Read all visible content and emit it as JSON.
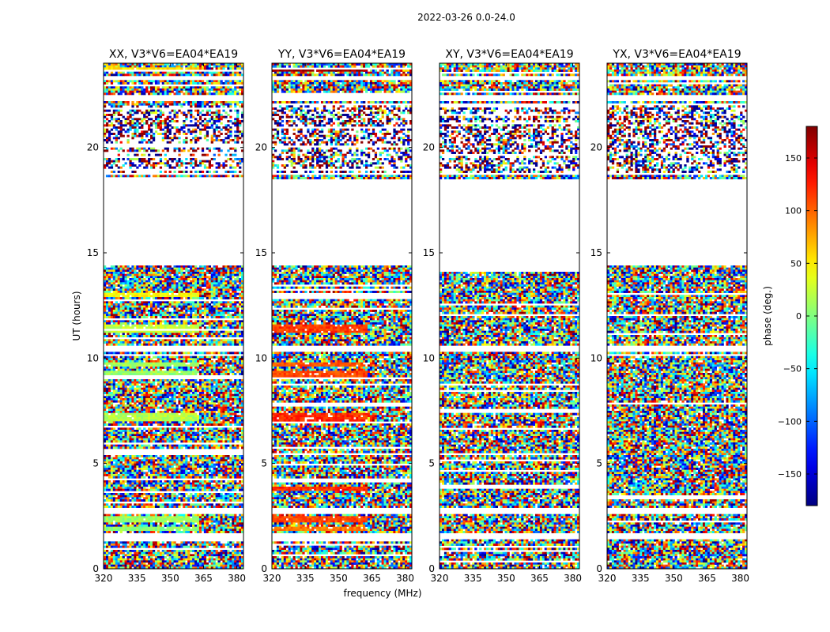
{
  "suptitle": "2022-03-26 0.0-24.0",
  "chart_data": {
    "type": "heatmap",
    "title": "2022-03-26 0.0-24.0",
    "xlabel": "frequency (MHz)",
    "ylabel": "UT (hours)",
    "xlim": [
      320,
      383
    ],
    "ylim": [
      0,
      24
    ],
    "xticks": [
      320,
      335,
      350,
      365,
      380
    ],
    "yticks": [
      0,
      5,
      10,
      15,
      20
    ],
    "colorbar": {
      "label": "phase (deg.)",
      "range": [
        -180,
        180
      ],
      "ticks": [
        -150,
        -100,
        -50,
        0,
        50,
        100,
        150
      ],
      "tick_labels": [
        "−150",
        "−100",
        "−50",
        "0",
        "50",
        "100",
        "150"
      ],
      "colormap": "jet"
    },
    "blank_ut_ranges": [
      [
        1.4,
        1.7
      ],
      [
        2.6,
        2.9
      ],
      [
        10.35,
        10.65
      ],
      [
        14.4,
        18.5
      ],
      [
        18.7,
        18.85
      ],
      [
        22.2,
        22.5
      ],
      [
        23.2,
        23.4
      ]
    ],
    "dense_noise_ut_ranges": [
      [
        18.85,
        22.0
      ]
    ],
    "panels": [
      {
        "title": "XX, V3*V6=EA04*EA19",
        "coherent_bands": [
          {
            "ut": [
              1.85,
              2.05
            ],
            "phase": 5
          },
          {
            "ut": [
              2.25,
              2.45
            ],
            "phase": 10
          },
          {
            "ut": [
              7.0,
              7.4
            ],
            "phase": 20
          },
          {
            "ut": [
              9.1,
              9.4
            ],
            "phase": 10
          },
          {
            "ut": [
              9.6,
              9.8
            ],
            "phase": 15
          },
          {
            "ut": [
              11.2,
              11.6
            ],
            "phase": 25
          },
          {
            "ut": [
              12.9,
              13.1
            ],
            "phase": 45
          },
          {
            "ut": [
              23.6,
              23.8
            ],
            "phase": 55
          }
        ]
      },
      {
        "title": "YY, V3*V6=EA04*EA19",
        "coherent_bands": [
          {
            "ut": [
              1.85,
              2.05
            ],
            "phase": 95
          },
          {
            "ut": [
              2.25,
              2.45
            ],
            "phase": 110
          },
          {
            "ut": [
              3.75,
              3.9
            ],
            "phase": 120
          },
          {
            "ut": [
              7.0,
              7.4
            ],
            "phase": 120
          },
          {
            "ut": [
              9.1,
              9.4
            ],
            "phase": 110
          },
          {
            "ut": [
              9.6,
              9.8
            ],
            "phase": 105
          },
          {
            "ut": [
              11.2,
              11.6
            ],
            "phase": 115
          },
          {
            "ut": [
              12.9,
              13.1
            ],
            "phase": 140
          },
          {
            "ut": [
              23.6,
              23.8
            ],
            "phase": 170
          }
        ]
      },
      {
        "title": "XY, V3*V6=EA04*EA19",
        "coherent_bands": []
      },
      {
        "title": "YX, V3*V6=EA04*EA19",
        "coherent_bands": []
      }
    ]
  }
}
